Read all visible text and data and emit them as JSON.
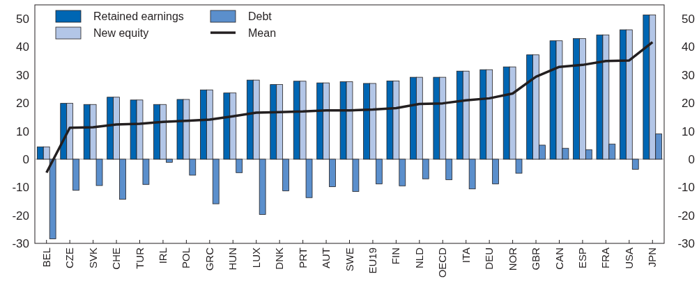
{
  "chart_data": {
    "type": "bar",
    "categories": [
      "BEL",
      "CZE",
      "SVK",
      "CHE",
      "TUR",
      "IRL",
      "POL",
      "GRC",
      "HUN",
      "LUX",
      "DNK",
      "PRT",
      "AUT",
      "SWE",
      "EU19",
      "FIN",
      "NLD",
      "OECD",
      "ITA",
      "DEU",
      "NOR",
      "GBR",
      "CAN",
      "ESP",
      "FRA",
      "USA",
      "JPN"
    ],
    "series": [
      {
        "name": "Retained earnings",
        "color": "#0066b3",
        "values": [
          4.4,
          19.9,
          19.5,
          22.1,
          21.1,
          19.5,
          21.3,
          24.7,
          23.6,
          28.2,
          26.6,
          27.8,
          27.2,
          27.6,
          27.0,
          27.9,
          29.2,
          29.2,
          31.4,
          31.9,
          32.9,
          37.2,
          42.2,
          43.0,
          44.3,
          46.1,
          51.4
        ]
      },
      {
        "name": "New equity",
        "color": "#b3c6e7",
        "values": [
          4.4,
          19.9,
          19.5,
          22.1,
          21.1,
          19.5,
          21.3,
          24.7,
          23.6,
          28.2,
          26.6,
          27.8,
          27.2,
          27.6,
          27.0,
          27.9,
          29.2,
          29.2,
          31.4,
          31.9,
          32.9,
          37.2,
          42.2,
          43.0,
          44.3,
          46.1,
          51.4
        ]
      },
      {
        "name": "Debt",
        "color": "#5b8fcc",
        "values": [
          -28.4,
          -11.1,
          -9.4,
          -14.3,
          -9.0,
          -1.1,
          -5.7,
          -15.9,
          -4.8,
          -19.7,
          -11.3,
          -13.7,
          -9.8,
          -11.5,
          -8.8,
          -9.5,
          -7.0,
          -7.3,
          -10.6,
          -8.8,
          -5.0,
          5.0,
          3.9,
          3.4,
          5.4,
          -3.6,
          9.0
        ]
      },
      {
        "name": "Mean",
        "type": "line",
        "color": "#231f20",
        "values": [
          -4.8,
          11.2,
          11.4,
          12.4,
          12.6,
          13.3,
          13.7,
          14.1,
          15.3,
          16.6,
          16.8,
          17.0,
          17.4,
          17.4,
          17.7,
          18.2,
          19.7,
          19.9,
          21.0,
          21.7,
          23.4,
          29.4,
          32.9,
          33.6,
          35.0,
          35.2,
          41.7
        ]
      }
    ],
    "ylim": [
      -30,
      55
    ],
    "yticks": [
      -30,
      -20,
      -10,
      0,
      10,
      20,
      30,
      40,
      50
    ],
    "y2lim": [
      -30,
      55
    ],
    "y2ticks": [
      -30,
      -20,
      -10,
      0,
      10,
      20,
      30,
      40,
      50
    ],
    "ref_lines": [
      {
        "axis": "y",
        "value": 0,
        "color": "#999999"
      }
    ],
    "legend": "top left",
    "grid": false
  }
}
